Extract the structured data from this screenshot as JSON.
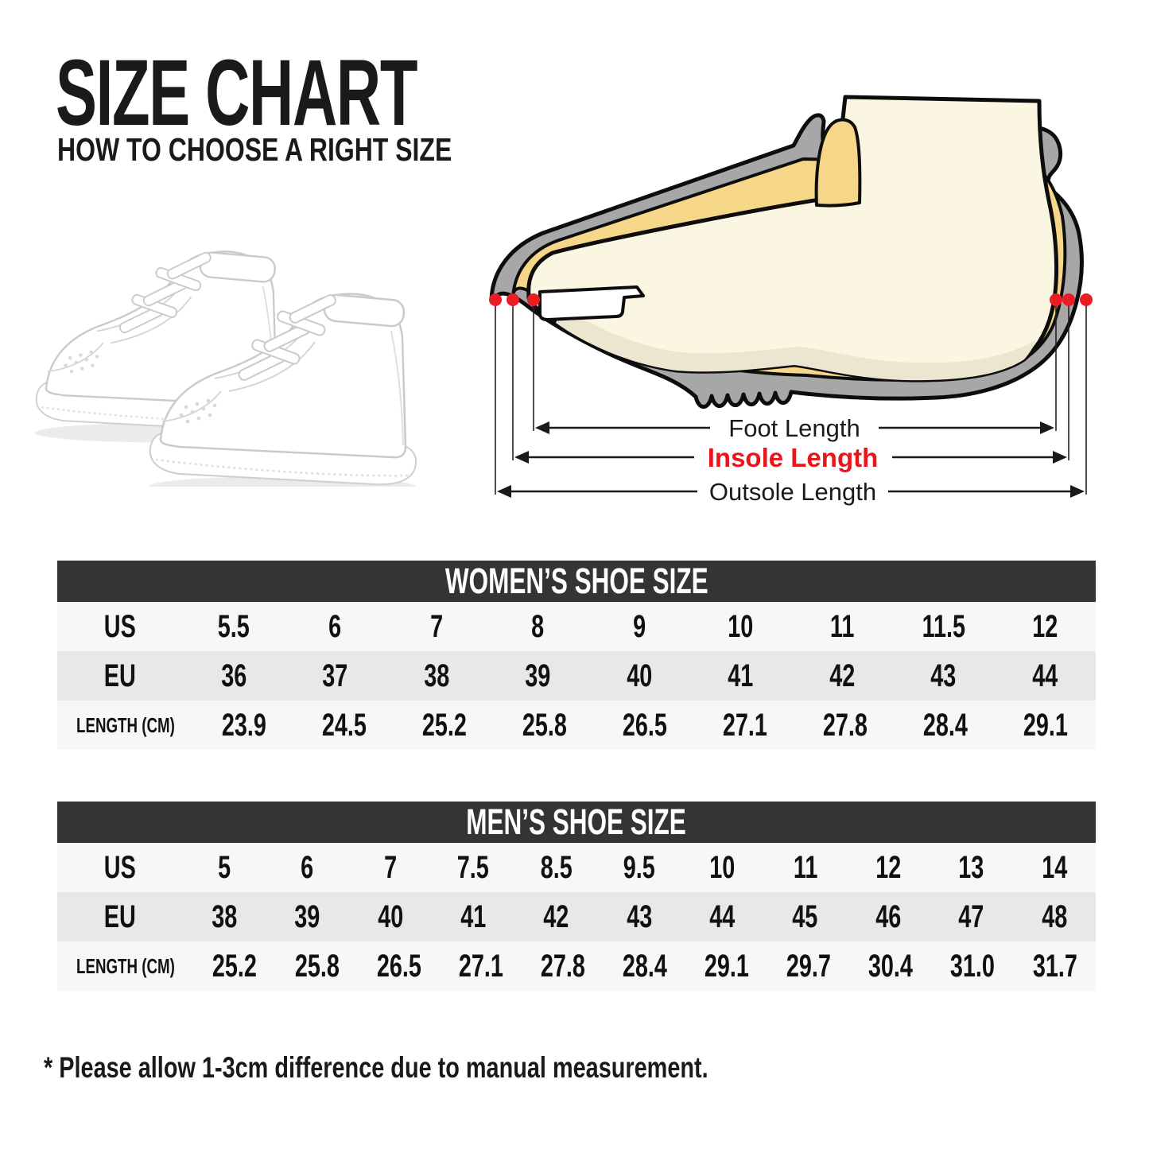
{
  "page": {
    "title": "SIZE CHART",
    "subtitle": "HOW TO CHOOSE A RIGHT SIZE",
    "footnote": "* Please allow 1-3cm difference due to manual measurement."
  },
  "photo": {
    "description": "pair of white high-top velcro-strap sneakers"
  },
  "diagram": {
    "labels": {
      "foot": "Foot Length",
      "insole": "Insole Length",
      "outsole": "Outsole Length"
    },
    "colors": {
      "shoe_gray": "#a7a7a7",
      "insole_yellow": "#f6d688",
      "foot_cream": "#faf6e2",
      "foot_shade": "#ece6d0",
      "outline": "#0d0d0d",
      "marker_red": "#ec1c24",
      "insole_label_red": "#e8151a"
    }
  },
  "table_colors": {
    "header_bg": "#343434",
    "header_text": "#ffffff",
    "row_light": "#f7f7f7",
    "row_shade": "#e8e8e8",
    "cell_text": "#111111"
  },
  "tables": [
    {
      "id": "women",
      "title": "WOMEN’S SHOE SIZE",
      "rows": [
        {
          "label": "US",
          "values": [
            "5.5",
            "6",
            "7",
            "8",
            "9",
            "10",
            "11",
            "11.5",
            "12"
          ]
        },
        {
          "label": "EU",
          "values": [
            "36",
            "37",
            "38",
            "39",
            "40",
            "41",
            "42",
            "43",
            "44"
          ]
        },
        {
          "label": "LENGTH (CM)",
          "values": [
            "23.9",
            "24.5",
            "25.2",
            "25.8",
            "26.5",
            "27.1",
            "27.8",
            "28.4",
            "29.1"
          ]
        }
      ]
    },
    {
      "id": "men",
      "title": "MEN’S SHOE SIZE",
      "rows": [
        {
          "label": "US",
          "values": [
            "5",
            "6",
            "7",
            "7.5",
            "8.5",
            "9.5",
            "10",
            "11",
            "12",
            "13",
            "14"
          ]
        },
        {
          "label": "EU",
          "values": [
            "38",
            "39",
            "40",
            "41",
            "42",
            "43",
            "44",
            "45",
            "46",
            "47",
            "48"
          ]
        },
        {
          "label": "LENGTH (CM)",
          "values": [
            "25.2",
            "25.8",
            "26.5",
            "27.1",
            "27.8",
            "28.4",
            "29.1",
            "29.7",
            "30.4",
            "31.0",
            "31.7"
          ]
        }
      ]
    }
  ]
}
